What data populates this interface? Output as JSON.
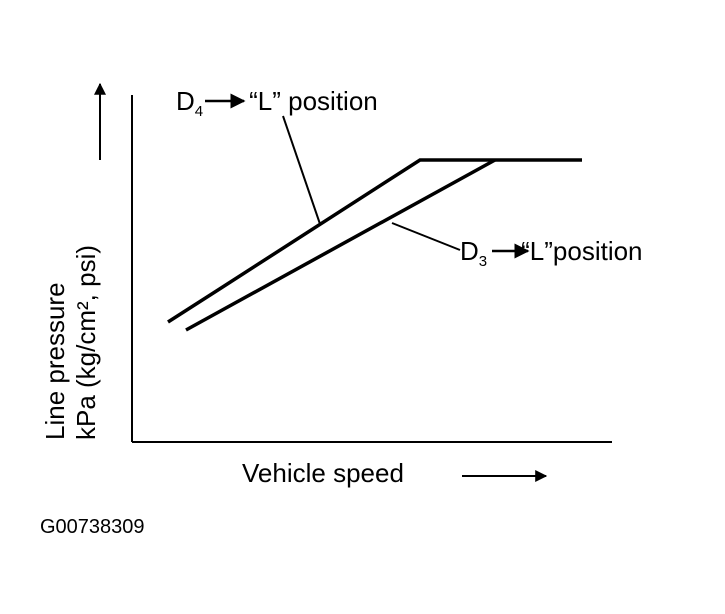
{
  "title_code": "G00738309",
  "y_axis": {
    "line1": "Line pressure",
    "line2": "kPa (kg/cm², psi)"
  },
  "x_axis": {
    "label": "Vehicle speed"
  },
  "curves": [
    {
      "letter": "D",
      "subscript": "4",
      "text": "“L” position"
    },
    {
      "letter": "D",
      "subscript": "3",
      "text": "“L”position"
    }
  ]
}
